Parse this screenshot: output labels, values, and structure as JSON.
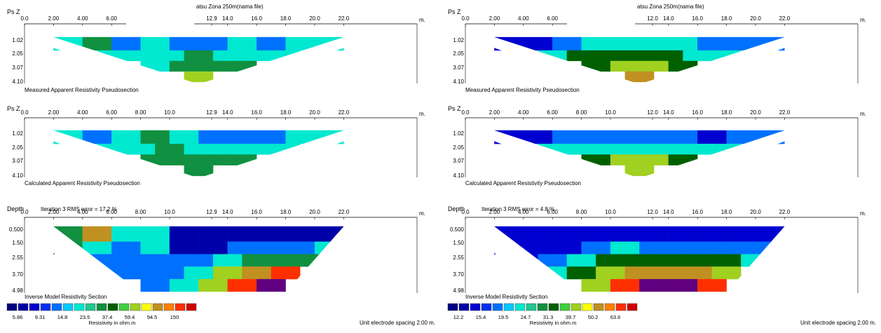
{
  "panels": [
    {
      "section1": {
        "ylabel": "Ps Z",
        "header": "atsu Zona 250m(nama file)",
        "x_ticks": [
          "0.0",
          "2.00",
          "4.00",
          "6.00",
          "12.9",
          "14.0",
          "16.0",
          "18.0",
          "20.0",
          "22.0"
        ],
        "unit": "m.",
        "y_ticks": [
          "1.02",
          "2.05",
          "3.07",
          "4.10"
        ],
        "caption": "Measured Apparent Resistivity Pseudosection"
      },
      "section2": {
        "ylabel": "Ps Z",
        "x_ticks": [
          "0.0",
          "2.00",
          "4.00",
          "6.00",
          "8.00",
          "10.0",
          "12.9",
          "14.0",
          "16.0",
          "18.0",
          "20.0",
          "22.0"
        ],
        "unit": "m.",
        "y_ticks": [
          "1.02",
          "2.05",
          "3.07",
          "4.10"
        ],
        "caption": "Calculated Apparent Resistivity Pseudosection"
      },
      "section3": {
        "ylabel": "Depth",
        "iteration": "Iteration 3 RMS error = 17.2 %",
        "x_ticks": [
          "0.0",
          "2.00",
          "4.00",
          "6.00",
          "8.00",
          "10.0",
          "12.9",
          "14.0",
          "16.0",
          "18.0",
          "20.0",
          "22.0"
        ],
        "unit": "m.",
        "y_ticks": [
          "0.500",
          "1.50",
          "2.55",
          "3.70",
          "4.98"
        ],
        "caption": "Inverse Model Resistivity Section"
      },
      "legend": {
        "values": [
          "5.86",
          "9.31",
          "14.8",
          "23.5",
          "37.4",
          "59.4",
          "94.5",
          "150"
        ],
        "unit": "Resistivity in ohm.m"
      },
      "spacing": "Unit electrode spacing 2.00 m."
    },
    {
      "section1": {
        "ylabel": "Ps Z",
        "header": "atsu Zona 250m(nama file)",
        "x_ticks": [
          "0.0",
          "2.00",
          "4.00",
          "6.00",
          "12.0",
          "14.0",
          "16.0",
          "18.0",
          "20.0",
          "22.0"
        ],
        "unit": "m.",
        "y_ticks": [
          "1.02",
          "2.05",
          "3.07",
          "4.10"
        ],
        "caption": "Measured Apparent Resistivity Pseudosection"
      },
      "section2": {
        "ylabel": "Ps Z",
        "x_ticks": [
          "0.0",
          "2.00",
          "4.00",
          "6.00",
          "8.00",
          "10.0",
          "12.0",
          "14.0",
          "16.0",
          "18.0",
          "20.0",
          "22.0"
        ],
        "unit": "m.",
        "y_ticks": [
          "1.02",
          "2.05",
          "3.07",
          "4.10"
        ],
        "caption": "Calculated Apparent Resistivity Pseudosection"
      },
      "section3": {
        "ylabel": "Depth",
        "iteration": "Iteration 3 RMS error = 4.8 %",
        "x_ticks": [
          "0.0",
          "2.00",
          "4.00",
          "6.00",
          "8.00",
          "10.0",
          "12.0",
          "14.0",
          "16.0",
          "18.0",
          "20.0",
          "22.0"
        ],
        "unit": "m.",
        "y_ticks": [
          "0.500",
          "1.50",
          "2.55",
          "3.70",
          "4.98"
        ],
        "caption": "Inverse Model Resistivity Section"
      },
      "legend": {
        "values": [
          "12.2",
          "15.4",
          "19.5",
          "24.7",
          "31.3",
          "39.7",
          "50.2",
          "63.6"
        ],
        "unit": "Resistivity in ohm.m"
      },
      "spacing": "Unit electrode spacing 2.00 m."
    }
  ],
  "colors": {
    "scale": [
      "#000080",
      "#0000a8",
      "#0000d0",
      "#0030f0",
      "#0070ff",
      "#00c8ff",
      "#00e8d0",
      "#20c890",
      "#109040",
      "#006000",
      "#40d040",
      "#a0d020",
      "#ffff00",
      "#c09020",
      "#ff8000",
      "#ff3000",
      "#d00000",
      "#800040",
      "#600080"
    ]
  },
  "chart_data": [
    {
      "type": "heatmap",
      "title": "Measured Apparent Resistivity Pseudosection",
      "xlabel": "m.",
      "ylabel": "Ps Z",
      "x_ticks": [
        0.0,
        2.0,
        4.0,
        6.0,
        12.9,
        14.0,
        16.0,
        18.0,
        20.0,
        22.0
      ],
      "y_ticks": [
        1.02,
        2.05,
        3.07,
        4.1
      ],
      "xlim": [
        0,
        22
      ],
      "ylim": [
        0,
        4.1
      ],
      "rows": [
        {
          "depth": 1.02,
          "x": [
            3,
            5,
            7,
            9,
            11,
            13,
            15,
            17,
            19,
            21
          ],
          "values": [
            14.8,
            23.5,
            9.31,
            14.8,
            9.31,
            9.31,
            14.8,
            9.31,
            14.8,
            14.8
          ]
        },
        {
          "depth": 2.05,
          "x": [
            6,
            8,
            10,
            12,
            14,
            16,
            18
          ],
          "values": [
            14.8,
            14.8,
            14.8,
            23.5,
            14.8,
            14.8,
            14.8
          ]
        },
        {
          "depth": 3.07,
          "x": [
            9,
            11,
            13,
            15
          ],
          "values": [
            14.8,
            23.5,
            23.5,
            23.5
          ]
        },
        {
          "depth": 4.1,
          "x": [
            12
          ],
          "values": [
            37.4
          ]
        }
      ]
    },
    {
      "type": "heatmap",
      "title": "Calculated Apparent Resistivity Pseudosection",
      "xlabel": "m.",
      "ylabel": "Ps Z",
      "x_ticks": [
        0.0,
        2.0,
        4.0,
        6.0,
        8.0,
        10.0,
        12.9,
        14.0,
        16.0,
        18.0,
        20.0,
        22.0
      ],
      "y_ticks": [
        1.02,
        2.05,
        3.07,
        4.1
      ],
      "xlim": [
        0,
        22
      ],
      "ylim": [
        0,
        4.1
      ],
      "rows": [
        {
          "depth": 1.02,
          "x": [
            3,
            5,
            7,
            9,
            11,
            13,
            15,
            17,
            19,
            21
          ],
          "values": [
            14.8,
            9.31,
            14.8,
            23.5,
            14.8,
            9.31,
            9.31,
            9.31,
            14.8,
            14.8
          ]
        },
        {
          "depth": 2.05,
          "x": [
            6,
            8,
            10,
            12,
            14,
            16,
            18
          ],
          "values": [
            14.8,
            14.8,
            23.5,
            14.8,
            14.8,
            14.8,
            14.8
          ]
        },
        {
          "depth": 3.07,
          "x": [
            9,
            11,
            13,
            15
          ],
          "values": [
            23.5,
            23.5,
            23.5,
            23.5
          ]
        },
        {
          "depth": 4.1,
          "x": [
            12
          ],
          "values": [
            23.5
          ]
        }
      ]
    },
    {
      "type": "heatmap",
      "title": "Inverse Model Resistivity Section",
      "subtitle": "Iteration 3 RMS error = 17.2 %",
      "xlabel": "m.",
      "ylabel": "Depth",
      "x_ticks": [
        0.0,
        2.0,
        4.0,
        6.0,
        8.0,
        10.0,
        12.9,
        14.0,
        16.0,
        18.0,
        20.0,
        22.0
      ],
      "y_ticks": [
        0.5,
        1.5,
        2.55,
        3.7,
        4.98
      ],
      "legend_values": [
        5.86,
        9.31,
        14.8,
        23.5,
        37.4,
        59.4,
        94.5,
        150
      ],
      "xlim": [
        0,
        22
      ],
      "ylim": [
        0,
        4.98
      ],
      "rows": [
        {
          "depth": 0.5,
          "x": [
            3,
            5,
            7,
            9,
            11,
            13,
            15,
            17,
            19,
            21
          ],
          "values": [
            23.5,
            59.4,
            14.8,
            14.8,
            5.86,
            5.86,
            5.86,
            5.86,
            5.86,
            5.86
          ]
        },
        {
          "depth": 1.5,
          "x": [
            3,
            5,
            7,
            9,
            11,
            13,
            15,
            17,
            19,
            21
          ],
          "values": [
            23.5,
            14.8,
            9.31,
            14.8,
            5.86,
            5.86,
            9.31,
            9.31,
            9.31,
            14.8
          ]
        },
        {
          "depth": 2.55,
          "x": [
            4,
            6,
            8,
            10,
            12,
            14,
            16,
            18,
            20
          ],
          "values": [
            9.31,
            9.31,
            9.31,
            9.31,
            9.31,
            14.8,
            23.5,
            23.5,
            23.5
          ]
        },
        {
          "depth": 3.7,
          "x": [
            6,
            8,
            10,
            12,
            14,
            16,
            18
          ],
          "values": [
            9.31,
            9.31,
            9.31,
            14.8,
            37.4,
            59.4,
            94.5
          ]
        },
        {
          "depth": 4.98,
          "x": [
            9,
            11,
            13,
            15,
            17
          ],
          "values": [
            9.31,
            14.8,
            37.4,
            94.5,
            150
          ]
        }
      ]
    },
    {
      "type": "heatmap",
      "title": "Measured Apparent Resistivity Pseudosection",
      "xlabel": "m.",
      "ylabel": "Ps Z",
      "x_ticks": [
        0.0,
        2.0,
        4.0,
        6.0,
        12.0,
        14.0,
        16.0,
        18.0,
        20.0,
        22.0
      ],
      "y_ticks": [
        1.02,
        2.05,
        3.07,
        4.1
      ],
      "xlim": [
        0,
        22
      ],
      "ylim": [
        0,
        4.1
      ],
      "rows": [
        {
          "depth": 1.02,
          "x": [
            3,
            5,
            7,
            9,
            11,
            13,
            15,
            17,
            19,
            21
          ],
          "values": [
            12.2,
            12.2,
            15.4,
            19.5,
            19.5,
            19.5,
            19.5,
            15.4,
            15.4,
            15.4
          ]
        },
        {
          "depth": 2.05,
          "x": [
            6,
            8,
            10,
            12,
            14,
            16,
            18
          ],
          "values": [
            19.5,
            24.7,
            24.7,
            24.7,
            24.7,
            19.5,
            19.5
          ]
        },
        {
          "depth": 3.07,
          "x": [
            9,
            11,
            13,
            15
          ],
          "values": [
            24.7,
            31.3,
            31.3,
            24.7
          ]
        },
        {
          "depth": 4.1,
          "x": [
            12
          ],
          "values": [
            39.7
          ]
        }
      ]
    },
    {
      "type": "heatmap",
      "title": "Calculated Apparent Resistivity Pseudosection",
      "xlabel": "m.",
      "ylabel": "Ps Z",
      "x_ticks": [
        0.0,
        2.0,
        4.0,
        6.0,
        8.0,
        10.0,
        12.0,
        14.0,
        16.0,
        18.0,
        20.0,
        22.0
      ],
      "y_ticks": [
        1.02,
        2.05,
        3.07,
        4.1
      ],
      "xlim": [
        0,
        22
      ],
      "ylim": [
        0,
        4.1
      ],
      "rows": [
        {
          "depth": 1.02,
          "x": [
            3,
            5,
            7,
            9,
            11,
            13,
            15,
            17,
            19,
            21
          ],
          "values": [
            12.2,
            12.2,
            15.4,
            15.4,
            15.4,
            15.4,
            15.4,
            12.2,
            15.4,
            15.4
          ]
        },
        {
          "depth": 2.05,
          "x": [
            6,
            8,
            10,
            12,
            14,
            16,
            18
          ],
          "values": [
            19.5,
            19.5,
            19.5,
            19.5,
            19.5,
            19.5,
            19.5
          ]
        },
        {
          "depth": 3.07,
          "x": [
            9,
            11,
            13,
            15
          ],
          "values": [
            24.7,
            31.3,
            31.3,
            24.7
          ]
        },
        {
          "depth": 4.1,
          "x": [
            12
          ],
          "values": [
            31.3
          ]
        }
      ]
    },
    {
      "type": "heatmap",
      "title": "Inverse Model Resistivity Section",
      "subtitle": "Iteration 3 RMS error = 4.8 %",
      "xlabel": "m.",
      "ylabel": "Depth",
      "x_ticks": [
        0.0,
        2.0,
        4.0,
        6.0,
        8.0,
        10.0,
        12.0,
        14.0,
        16.0,
        18.0,
        20.0,
        22.0
      ],
      "y_ticks": [
        0.5,
        1.5,
        2.55,
        3.7,
        4.98
      ],
      "legend_values": [
        12.2,
        15.4,
        19.5,
        24.7,
        31.3,
        39.7,
        50.2,
        63.6
      ],
      "xlim": [
        0,
        22
      ],
      "ylim": [
        0,
        4.98
      ],
      "rows": [
        {
          "depth": 0.5,
          "x": [
            3,
            5,
            7,
            9,
            11,
            13,
            15,
            17,
            19,
            21
          ],
          "values": [
            12.2,
            12.2,
            12.2,
            12.2,
            12.2,
            12.2,
            12.2,
            12.2,
            12.2,
            12.2
          ]
        },
        {
          "depth": 1.5,
          "x": [
            3,
            5,
            7,
            9,
            11,
            13,
            15,
            17,
            19,
            21
          ],
          "values": [
            12.2,
            12.2,
            12.2,
            15.4,
            19.5,
            15.4,
            15.4,
            15.4,
            15.4,
            15.4
          ]
        },
        {
          "depth": 2.55,
          "x": [
            4,
            6,
            8,
            10,
            12,
            14,
            16,
            18,
            20
          ],
          "values": [
            12.2,
            15.4,
            19.5,
            24.7,
            24.7,
            24.7,
            24.7,
            24.7,
            19.5
          ]
        },
        {
          "depth": 3.7,
          "x": [
            6,
            8,
            10,
            12,
            14,
            16,
            18
          ],
          "values": [
            19.5,
            24.7,
            31.3,
            39.7,
            39.7,
            39.7,
            31.3
          ]
        },
        {
          "depth": 4.98,
          "x": [
            9,
            11,
            13,
            15,
            17
          ],
          "values": [
            31.3,
            50.2,
            63.6,
            63.6,
            50.2
          ]
        }
      ]
    }
  ]
}
